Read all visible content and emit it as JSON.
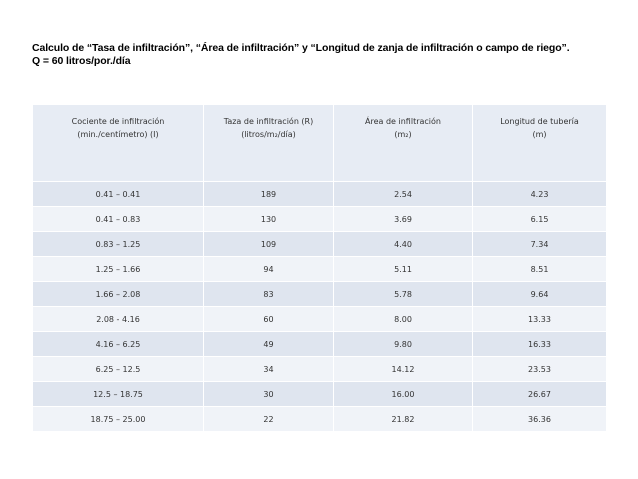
{
  "title": {
    "line1": "Calculo de “Tasa de infiltración”, “Área de infiltración” y  “Longitud de  zanja de infiltración o campo de riego”.",
    "line2": "Q = 60 litros/por./día"
  },
  "table": {
    "headers": [
      {
        "line1": "Cociente de infiltración",
        "line2": "(min./centímetro) (I)"
      },
      {
        "line1": "Taza de infiltración (R)",
        "line2": "(litros/m₂/día)"
      },
      {
        "line1": "Área de infiltración",
        "line2": "(m₂)"
      },
      {
        "line1": "Longitud de tubería",
        "line2": "(m)"
      }
    ],
    "rows": [
      [
        "0.41 – 0.41",
        "189",
        "2.54",
        "4.23"
      ],
      [
        "0.41 – 0.83",
        "130",
        "3.69",
        "6.15"
      ],
      [
        "0.83 – 1.25",
        "109",
        "4.40",
        "7.34"
      ],
      [
        "1.25 – 1.66",
        "94",
        "5.11",
        "8.51"
      ],
      [
        "1.66 – 2.08",
        "83",
        "5.78",
        "9.64"
      ],
      [
        "2.08 - 4.16",
        "60",
        "8.00",
        "13.33"
      ],
      [
        "4.16 – 6.25",
        "49",
        "9.80",
        "16.33"
      ],
      [
        "6.25 – 12.5",
        "34",
        "14.12",
        "23.53"
      ],
      [
        "12.5 – 18.75",
        "30",
        "16.00",
        "26.67"
      ],
      [
        "18.75 – 25.00",
        "22",
        "21.82",
        "36.36"
      ]
    ]
  }
}
